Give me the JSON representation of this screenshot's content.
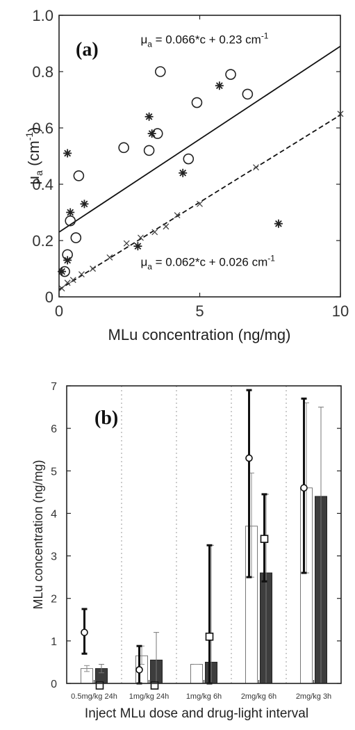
{
  "chart_data": [
    {
      "panel": "(a)",
      "type": "scatter",
      "xlabel": "MLu concentration (ng/mg)",
      "ylabel_base": "μ",
      "ylabel_sub": "a",
      "ylabel_unit": " (cm",
      "ylabel_sup": "-1",
      "ylabel_close": ")",
      "xlim": [
        0,
        10
      ],
      "ylim": [
        0,
        1.0
      ],
      "xticks": [
        0,
        5,
        10
      ],
      "xtick_labels": [
        "0",
        "5",
        "10"
      ],
      "yticks": [
        0,
        0.2,
        0.4,
        0.6,
        0.8,
        1.0
      ],
      "ytick_labels": [
        "0",
        "0.2",
        "0.4",
        "0.6",
        "0.8",
        "1.0"
      ],
      "grid": false,
      "annotations": [
        {
          "base": "μ",
          "sub": "a",
          "text": " = 0.066*c + 0.23 cm",
          "sup": "-1",
          "x": 2.9,
          "y": 0.915
        },
        {
          "base": "μ",
          "sub": "a",
          "text": " = 0.062*c + 0.026 cm",
          "sup": "-1",
          "x": 2.9,
          "y": 0.125
        }
      ],
      "fit_lines": [
        {
          "name": "fit-solid",
          "slope": 0.066,
          "intercept": 0.23,
          "style": "solid"
        },
        {
          "name": "fit-dashed",
          "slope": 0.062,
          "intercept": 0.026,
          "style": "dashed"
        }
      ],
      "series": [
        {
          "marker": "circle",
          "points": [
            [
              0.2,
              0.09
            ],
            [
              0.3,
              0.15
            ],
            [
              0.4,
              0.27
            ],
            [
              0.6,
              0.21
            ],
            [
              0.7,
              0.43
            ],
            [
              2.3,
              0.53
            ],
            [
              3.2,
              0.52
            ],
            [
              3.5,
              0.58
            ],
            [
              3.6,
              0.8
            ],
            [
              4.6,
              0.49
            ],
            [
              4.9,
              0.69
            ],
            [
              6.1,
              0.79
            ],
            [
              6.7,
              0.72
            ]
          ]
        },
        {
          "marker": "asterisk",
          "points": [
            [
              0.1,
              0.09
            ],
            [
              0.3,
              0.51
            ],
            [
              0.4,
              0.3
            ],
            [
              0.9,
              0.33
            ],
            [
              3.2,
              0.64
            ],
            [
              3.3,
              0.58
            ],
            [
              4.4,
              0.44
            ],
            [
              5.7,
              0.75
            ],
            [
              7.8,
              0.26
            ],
            [
              2.8,
              0.18
            ],
            [
              0.3,
              0.13
            ]
          ]
        },
        {
          "marker": "x",
          "points": [
            [
              0.1,
              0.03
            ],
            [
              0.3,
              0.05
            ],
            [
              0.5,
              0.06
            ],
            [
              0.8,
              0.08
            ],
            [
              1.2,
              0.1
            ],
            [
              1.8,
              0.14
            ],
            [
              2.4,
              0.19
            ],
            [
              2.9,
              0.21
            ],
            [
              3.4,
              0.23
            ],
            [
              3.8,
              0.25
            ],
            [
              4.2,
              0.29
            ],
            [
              5.0,
              0.33
            ],
            [
              7.0,
              0.46
            ],
            [
              10.0,
              0.65
            ]
          ]
        }
      ]
    },
    {
      "panel": "(b)",
      "type": "bar",
      "xlabel": "Inject MLu dose and drug-light interval",
      "ylabel": "MLu concentration (ng/mg)",
      "ylim": [
        0,
        7
      ],
      "yticks": [
        0,
        1,
        2,
        3,
        4,
        5,
        6,
        7
      ],
      "ytick_labels": [
        "0",
        "1",
        "2",
        "3",
        "4",
        "5",
        "6",
        "7"
      ],
      "grid": "vertical-dotted",
      "categories": [
        "0.5mg/kg 24h",
        "1mg/kg 24h",
        "1mg/kg 6h",
        "2mg/kg 6h",
        "2mg/kg 3h"
      ],
      "series": [
        {
          "style": "open-bar",
          "values": [
            0.35,
            0.65,
            0.45,
            3.7,
            4.6
          ],
          "err_low": [
            0.28,
            0.45,
            0.45,
            2.5,
            2.6
          ],
          "err_high": [
            0.42,
            0.88,
            0.45,
            4.95,
            6.6
          ]
        },
        {
          "style": "filled-bar",
          "values": [
            0.35,
            0.55,
            0.5,
            2.6,
            4.4
          ],
          "err_low": [
            0.25,
            0.0,
            0.0,
            0.0,
            0.0
          ],
          "err_high": [
            0.45,
            1.2,
            3.25,
            4.45,
            6.5
          ]
        },
        {
          "style": "circle-errbar",
          "values": [
            1.2,
            0.32,
            null,
            5.3,
            4.6
          ],
          "err_low": [
            0.7,
            0.0,
            null,
            2.5,
            2.6
          ],
          "err_high": [
            1.75,
            0.88,
            null,
            6.9,
            6.7
          ]
        },
        {
          "style": "square-errbar",
          "values": [
            -0.05,
            -0.05,
            1.1,
            3.4,
            null
          ],
          "err_low": [
            null,
            null,
            0.0,
            2.4,
            null
          ],
          "err_high": [
            null,
            null,
            3.25,
            4.45,
            null
          ]
        }
      ]
    }
  ]
}
